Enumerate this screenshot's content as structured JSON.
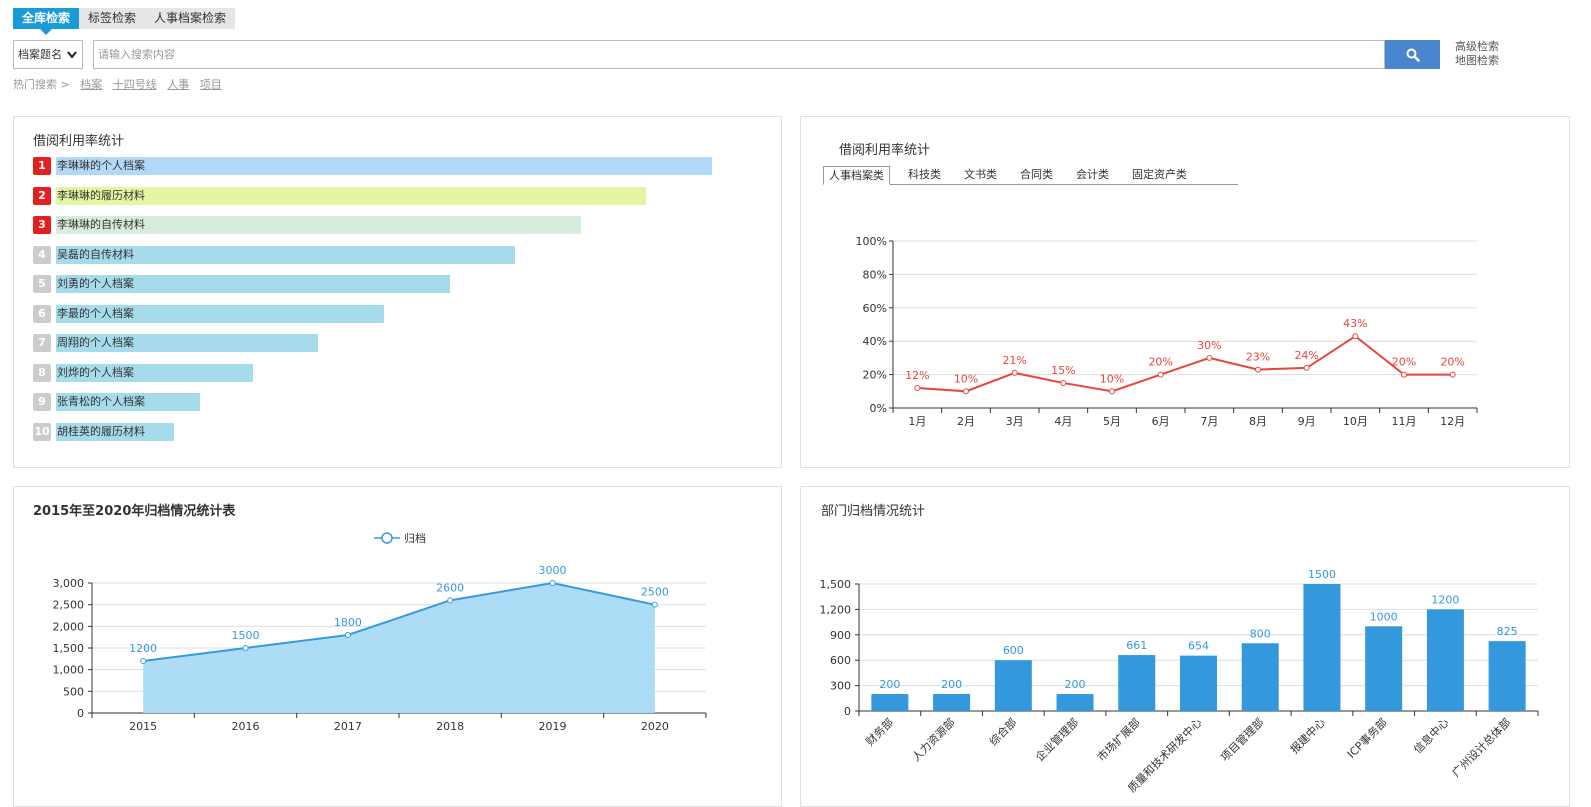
{
  "tabs": [
    "全库检索",
    "标签检索",
    "人事档案检索"
  ],
  "search": {
    "field_label": "档案题名",
    "placeholder": "请输入搜索内容",
    "advanced": "高级检索",
    "map": "地图检索"
  },
  "hot": {
    "label": "热门搜索 >",
    "items": [
      "档案",
      "十四号线",
      "人事",
      "项目"
    ]
  },
  "ranking": {
    "title": "借阅利用率统计",
    "items": [
      {
        "rank": "1",
        "label": "李琳琳的个人档案",
        "value": 100,
        "color": "#b3d9f9",
        "badge": "#e41f1f"
      },
      {
        "rank": "2",
        "label": "李琳琳的履历材料",
        "value": 90,
        "color": "#e3f7a3",
        "badge": "#e41f1f"
      },
      {
        "rank": "3",
        "label": "李琳琳的自传材料",
        "value": 80,
        "color": "#d8ecdc",
        "badge": "#e41f1f"
      },
      {
        "rank": "4",
        "label": "吴磊的自传材料",
        "value": 70,
        "color": "#a6dbeb",
        "badge": "#cccccc"
      },
      {
        "rank": "5",
        "label": "刘勇的个人档案",
        "value": 60,
        "color": "#a6dbeb",
        "badge": "#cccccc"
      },
      {
        "rank": "6",
        "label": "李最的个人档案",
        "value": 50,
        "color": "#a6dbeb",
        "badge": "#cccccc"
      },
      {
        "rank": "7",
        "label": "周翔的个人档案",
        "value": 40,
        "color": "#a6dbeb",
        "badge": "#cccccc"
      },
      {
        "rank": "8",
        "label": "刘烨的个人档案",
        "value": 30,
        "color": "#a6dbeb",
        "badge": "#cccccc"
      },
      {
        "rank": "9",
        "label": "张青松的个人档案",
        "value": 22,
        "color": "#a6dbeb",
        "badge": "#cccccc"
      },
      {
        "rank": "10",
        "label": "胡桂英的履历材料",
        "value": 18,
        "color": "#a6dbeb",
        "badge": "#cccccc"
      }
    ]
  },
  "line_panel": {
    "title": "借阅利用率统计",
    "categories": [
      "人事档案类",
      "科技类",
      "文书类",
      "合同类",
      "会计类",
      "固定资产类"
    ]
  },
  "area_panel": {
    "title": "2015年至2020年归档情况统计表"
  },
  "bar_panel": {
    "title": "部门归档情况统计"
  },
  "chart_data": [
    {
      "type": "bar",
      "orientation": "horizontal",
      "title": "借阅利用率统计",
      "categories": [
        "李琳琳的个人档案",
        "李琳琳的履历材料",
        "李琳琳的自传材料",
        "吴磊的自传材料",
        "刘勇的个人档案",
        "李最的个人档案",
        "周翔的个人档案",
        "刘烨的个人档案",
        "张青松的个人档案",
        "胡桂英的履历材料"
      ],
      "values": [
        100,
        90,
        80,
        70,
        60,
        50,
        40,
        30,
        22,
        18
      ]
    },
    {
      "type": "line",
      "title": "借阅利用率统计",
      "categories": [
        "1月",
        "2月",
        "3月",
        "4月",
        "5月",
        "6月",
        "7月",
        "8月",
        "9月",
        "10月",
        "11月",
        "12月"
      ],
      "values": [
        12,
        10,
        21,
        15,
        10,
        20,
        30,
        23,
        24,
        43,
        20,
        20
      ],
      "value_labels": [
        "12%",
        "10%",
        "21%",
        "15%",
        "10%",
        "20%",
        "30%",
        "23%",
        "24%",
        "43%",
        "20%",
        "20%"
      ],
      "yticks": [
        "0%",
        "20%",
        "40%",
        "60%",
        "80%",
        "100%"
      ],
      "ylim": [
        0,
        100
      ],
      "color": "#e8453c",
      "grid": true
    },
    {
      "type": "area",
      "title": "2015年至2020年归档情况统计表",
      "categories": [
        "2015",
        "2016",
        "2017",
        "2018",
        "2019",
        "2020"
      ],
      "series": [
        {
          "name": "归档",
          "values": [
            1200,
            1500,
            1800,
            2600,
            3000,
            2500
          ]
        }
      ],
      "yticks": [
        "0",
        "500",
        "1,000",
        "1,500",
        "2,000",
        "2,500",
        "3,000"
      ],
      "ylim": [
        0,
        3000
      ],
      "line_color": "#3a9ad9",
      "fill_color": "#a9daf7",
      "legend": "top-center",
      "grid": true
    },
    {
      "type": "bar",
      "title": "部门归档情况统计",
      "categories": [
        "财务部",
        "人力资源部",
        "综合部",
        "企业管理部",
        "市场扩展部",
        "质量和技术研发中心",
        "项目管理部",
        "报建中心",
        "ICP事务部",
        "信息中心",
        "广州设计总体部"
      ],
      "values": [
        200,
        200,
        600,
        200,
        661,
        654,
        800,
        1500,
        1000,
        1200,
        825
      ],
      "yticks": [
        "0",
        "300",
        "600",
        "900",
        "1,200",
        "1,500"
      ],
      "ylim": [
        0,
        1500
      ],
      "color": "#3398dc",
      "grid": true
    }
  ]
}
